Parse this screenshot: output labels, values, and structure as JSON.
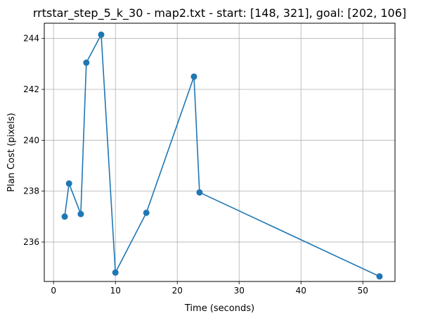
{
  "chart_data": {
    "type": "line",
    "title": "rrtstar_step_5_k_30 - map2.txt - start: [148, 321], goal: [202, 106]",
    "xlabel": "Time (seconds)",
    "ylabel": "Plan Cost (pixels)",
    "xlim": [
      -1.5,
      55.2
    ],
    "ylim": [
      234.45,
      244.6
    ],
    "xticks": [
      0,
      10,
      20,
      30,
      40,
      50
    ],
    "xtick_labels": [
      "0",
      "10",
      "20",
      "30",
      "40",
      "50"
    ],
    "yticks": [
      236,
      238,
      240,
      242,
      244
    ],
    "ytick_labels": [
      "236",
      "238",
      "240",
      "242",
      "244"
    ],
    "grid": true,
    "series": [
      {
        "name": "plan cost",
        "color": "#1f77b4",
        "marker": "circle",
        "x": [
          1.8,
          2.5,
          4.4,
          5.3,
          7.7,
          10.0,
          15.0,
          22.7,
          23.6,
          52.7
        ],
        "y": [
          237.0,
          238.3,
          237.1,
          243.05,
          244.15,
          234.8,
          237.15,
          242.5,
          237.95,
          234.65
        ]
      }
    ]
  }
}
